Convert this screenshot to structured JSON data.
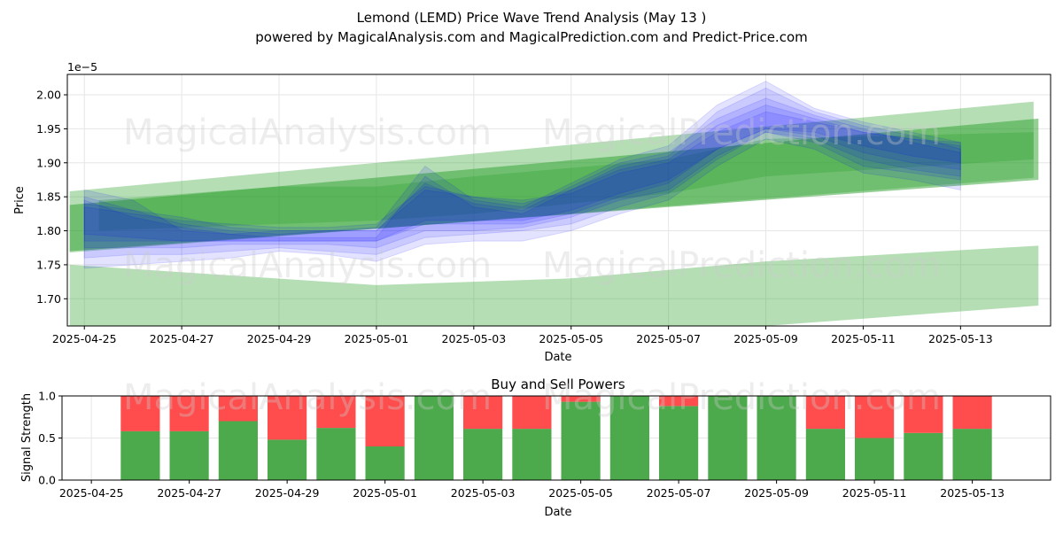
{
  "title_line1": "Lemond (LEMD) Price Wave Trend Analysis (May 13 )",
  "title_line2": "powered by MagicalAnalysis.com and MagicalPrediction.com and Predict-Price.com",
  "watermarks": [
    "MagicalAnalysis.com",
    "MagicalPrediction.com"
  ],
  "colors": {
    "green": "#2ca02c",
    "blue": "#0000ff",
    "buy": "#4caa4c",
    "sell": "#ff4c4c"
  },
  "chart_data": [
    {
      "type": "area",
      "name": "price-wave-chart",
      "title": "",
      "xlabel": "Date",
      "ylabel": "Price",
      "exponent_label": "1e−5",
      "ylim": [
        1.66,
        2.03
      ],
      "xlim_days": [
        -0.35,
        19.85
      ],
      "x_ticks": [
        {
          "label": "2025-04-25",
          "d": 0
        },
        {
          "label": "2025-04-27",
          "d": 2
        },
        {
          "label": "2025-04-29",
          "d": 4
        },
        {
          "label": "2025-05-01",
          "d": 6
        },
        {
          "label": "2025-05-03",
          "d": 8
        },
        {
          "label": "2025-05-05",
          "d": 10
        },
        {
          "label": "2025-05-07",
          "d": 12
        },
        {
          "label": "2025-05-09",
          "d": 14
        },
        {
          "label": "2025-05-11",
          "d": 16
        },
        {
          "label": "2025-05-13",
          "d": 18
        }
      ],
      "y_ticks": [
        "1.70",
        "1.75",
        "1.80",
        "1.85",
        "1.90",
        "1.95",
        "2.00"
      ],
      "green_bands": [
        {
          "x": [
            -0.3,
            19.5
          ],
          "upper": [
            1.858,
            1.99
          ],
          "lower": [
            1.768,
            1.878
          ],
          "opacity": 0.35
        },
        {
          "x": [
            -0.3,
            19.6
          ],
          "upper": [
            1.838,
            1.965
          ],
          "lower": [
            1.77,
            1.875
          ],
          "opacity": 0.5
        },
        {
          "x": [
            -0.3,
            6,
            10,
            14,
            19.6
          ],
          "upper": [
            1.75,
            1.72,
            1.73,
            1.755,
            1.778
          ],
          "lower": [
            1.66,
            1.6,
            1.6,
            1.66,
            1.69
          ],
          "opacity": 0.35
        },
        {
          "x": [
            0.3,
            4,
            6,
            8,
            12,
            14,
            19.5
          ],
          "upper": [
            1.845,
            1.865,
            1.865,
            1.88,
            1.905,
            1.935,
            1.945
          ],
          "lower": [
            1.8,
            1.81,
            1.815,
            1.825,
            1.855,
            1.88,
            1.905
          ],
          "opacity": 0.3
        }
      ],
      "blue_waves": {
        "x": [
          0,
          1,
          2,
          3,
          4,
          5,
          6,
          7,
          8,
          9,
          10,
          11,
          12,
          13,
          14,
          15,
          16,
          17,
          18
        ],
        "series": [
          {
            "upper": [
              1.86,
              1.845,
              1.8,
              1.795,
              1.79,
              1.79,
              1.79,
              1.88,
              1.835,
              1.825,
              1.86,
              1.895,
              1.91,
              1.975,
              2.01,
              1.975,
              1.955,
              1.94,
              1.92
            ],
            "lower": [
              1.76,
              1.765,
              1.765,
              1.77,
              1.775,
              1.77,
              1.765,
              1.79,
              1.795,
              1.8,
              1.81,
              1.835,
              1.855,
              1.905,
              1.945,
              1.93,
              1.895,
              1.885,
              1.875
            ]
          },
          {
            "upper": [
              1.85,
              1.83,
              1.81,
              1.8,
              1.795,
              1.8,
              1.8,
              1.87,
              1.84,
              1.83,
              1.865,
              1.9,
              1.915,
              1.965,
              1.995,
              1.97,
              1.95,
              1.93,
              1.915
            ],
            "lower": [
              1.775,
              1.775,
              1.775,
              1.78,
              1.78,
              1.78,
              1.775,
              1.8,
              1.8,
              1.805,
              1.82,
              1.845,
              1.86,
              1.91,
              1.945,
              1.935,
              1.905,
              1.89,
              1.88
            ]
          },
          {
            "upper": [
              1.845,
              1.82,
              1.805,
              1.795,
              1.8,
              1.8,
              1.805,
              1.895,
              1.845,
              1.835,
              1.87,
              1.905,
              1.925,
              1.985,
              2.02,
              1.98,
              1.96,
              1.945,
              1.93
            ],
            "lower": [
              1.745,
              1.75,
              1.755,
              1.76,
              1.77,
              1.765,
              1.755,
              1.78,
              1.785,
              1.785,
              1.8,
              1.825,
              1.845,
              1.895,
              1.935,
              1.92,
              1.885,
              1.875,
              1.86
            ]
          },
          {
            "upper": [
              1.835,
              1.825,
              1.815,
              1.81,
              1.805,
              1.805,
              1.81,
              1.865,
              1.85,
              1.84,
              1.86,
              1.89,
              1.905,
              1.955,
              1.985,
              1.965,
              1.945,
              1.935,
              1.925
            ],
            "lower": [
              1.785,
              1.785,
              1.785,
              1.785,
              1.785,
              1.785,
              1.785,
              1.81,
              1.81,
              1.81,
              1.825,
              1.85,
              1.87,
              1.92,
              1.95,
              1.94,
              1.915,
              1.9,
              1.89
            ]
          },
          {
            "upper": [
              1.84,
              1.83,
              1.82,
              1.805,
              1.8,
              1.8,
              1.8,
              1.86,
              1.85,
              1.845,
              1.855,
              1.885,
              1.9,
              1.945,
              1.975,
              1.96,
              1.945,
              1.935,
              1.93
            ],
            "lower": [
              1.795,
              1.79,
              1.785,
              1.785,
              1.785,
              1.785,
              1.785,
              1.815,
              1.815,
              1.815,
              1.83,
              1.855,
              1.875,
              1.92,
              1.95,
              1.945,
              1.925,
              1.91,
              1.9
            ]
          }
        ]
      }
    },
    {
      "type": "bar",
      "name": "buy-sell-chart",
      "title": "Buy and Sell Powers",
      "xlabel": "Date",
      "ylabel": "Signal Strength",
      "ylim": [
        0,
        1.0
      ],
      "xlim_days": [
        -0.6,
        19.6
      ],
      "y_ticks": [
        "0.0",
        "0.5",
        "1.0"
      ],
      "x_ticks": [
        {
          "label": "2025-04-25",
          "d": 0
        },
        {
          "label": "2025-04-27",
          "d": 2
        },
        {
          "label": "2025-04-29",
          "d": 4
        },
        {
          "label": "2025-05-01",
          "d": 6
        },
        {
          "label": "2025-05-03",
          "d": 8
        },
        {
          "label": "2025-05-05",
          "d": 10
        },
        {
          "label": "2025-05-07",
          "d": 12
        },
        {
          "label": "2025-05-09",
          "d": 14
        },
        {
          "label": "2025-05-11",
          "d": 16
        },
        {
          "label": "2025-05-13",
          "d": 18
        }
      ],
      "categories": [
        "2025-04-26",
        "2025-04-27",
        "2025-04-28",
        "2025-04-29",
        "2025-04-30",
        "2025-05-01",
        "2025-05-02",
        "2025-05-03",
        "2025-05-04",
        "2025-05-05",
        "2025-05-06",
        "2025-05-07",
        "2025-05-08",
        "2025-05-09",
        "2025-05-10",
        "2025-05-11",
        "2025-05-12",
        "2025-05-13"
      ],
      "category_days": [
        1,
        2,
        3,
        4,
        5,
        6,
        7,
        8,
        9,
        10,
        11,
        12,
        13,
        14,
        15,
        16,
        17,
        18
      ],
      "series": [
        {
          "name": "Buy",
          "values": [
            0.58,
            0.58,
            0.7,
            0.48,
            0.62,
            0.4,
            1.0,
            0.61,
            0.61,
            0.93,
            1.0,
            0.88,
            1.0,
            1.0,
            0.61,
            0.5,
            0.56,
            0.61
          ]
        },
        {
          "name": "Sell",
          "values": [
            0.42,
            0.42,
            0.3,
            0.52,
            0.38,
            0.6,
            0.0,
            0.39,
            0.39,
            0.07,
            0.0,
            0.12,
            0.0,
            0.0,
            0.39,
            0.5,
            0.44,
            0.39
          ]
        }
      ]
    }
  ]
}
